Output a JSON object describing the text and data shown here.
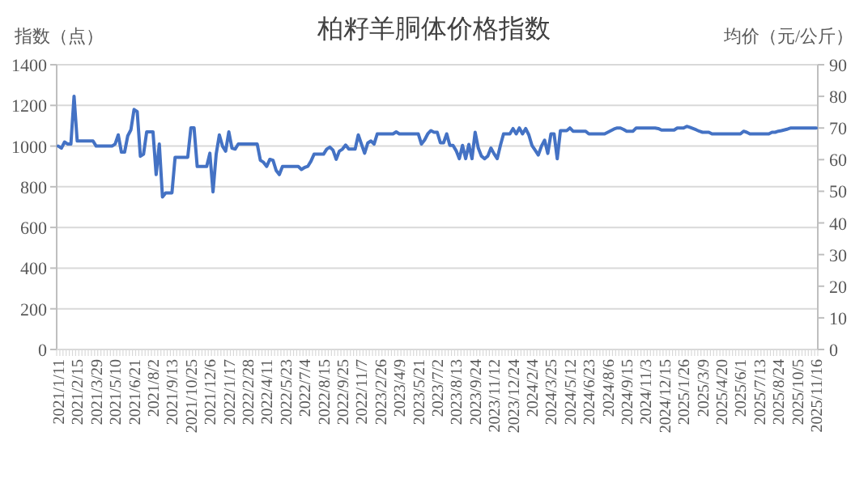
{
  "chart_data": {
    "type": "line",
    "title": "柏籽羊胴体价格指数",
    "ylabel": "指数（点）",
    "y2label": "均价（元/公斤）",
    "categories": [
      "2021/1/11",
      null,
      null,
      null,
      null,
      null,
      "2021/2/15",
      null,
      null,
      null,
      null,
      null,
      "2021/3/29",
      null,
      null,
      null,
      null,
      null,
      "2021/5/10",
      null,
      null,
      null,
      null,
      null,
      "2021/6/21",
      null,
      null,
      null,
      null,
      null,
      "2021/8/2",
      null,
      null,
      null,
      null,
      null,
      "2021/9/13",
      null,
      null,
      null,
      null,
      null,
      "2021/10/25",
      null,
      null,
      null,
      null,
      null,
      "2021/12/6",
      null,
      null,
      null,
      null,
      null,
      "2022/1/17",
      null,
      null,
      null,
      null,
      null,
      "2022/2/28",
      null,
      null,
      null,
      null,
      null,
      "2022/4/11",
      null,
      null,
      null,
      null,
      null,
      "2022/5/23",
      null,
      null,
      null,
      null,
      null,
      "2022/7/4",
      null,
      null,
      null,
      null,
      null,
      "2022/8/15",
      null,
      null,
      null,
      null,
      null,
      "2022/9/25",
      null,
      null,
      null,
      null,
      null,
      "2022/11/7",
      null,
      null,
      null,
      null,
      null,
      "2023/2/26",
      null,
      null,
      null,
      null,
      null,
      "2023/4/9",
      null,
      null,
      null,
      null,
      null,
      "2023/5/21",
      null,
      null,
      null,
      null,
      null,
      "2023/7/2",
      null,
      null,
      null,
      null,
      null,
      "2023/8/13",
      null,
      null,
      null,
      null,
      null,
      "2023/9/24",
      null,
      null,
      null,
      null,
      null,
      "2023/11/12",
      null,
      null,
      null,
      null,
      null,
      "2023/12/24",
      null,
      null,
      null,
      null,
      null,
      "2024/2/4",
      null,
      null,
      null,
      null,
      null,
      "2024/3/25",
      null,
      null,
      null,
      null,
      null,
      "2024/5/12",
      null,
      null,
      null,
      null,
      null,
      "2024/6/23",
      null,
      null,
      null,
      null,
      null,
      "2024/8/6",
      null,
      null,
      null,
      null,
      null,
      "2024/9/15",
      null,
      null,
      null,
      null,
      null,
      "2024/11/3",
      null,
      null,
      null,
      null,
      null,
      "2024/12/15",
      null,
      null,
      null,
      null,
      null,
      "2025/1/26",
      null,
      null,
      null,
      null,
      null,
      "2025/3/9",
      null,
      null,
      null,
      null,
      null,
      "2025/4/20",
      null,
      null,
      null,
      null,
      null,
      "2025/6/1",
      null,
      null,
      null,
      null,
      null,
      "2025/7/13",
      null,
      null,
      null,
      null,
      null,
      "2025/8/24",
      null,
      null,
      null,
      null,
      null,
      "2025/10/5",
      null,
      null,
      null,
      null,
      null,
      "2025/11/16"
    ],
    "series": [
      {
        "color": "#4472c4",
        "values": [
          1000,
          990,
          1020,
          1010,
          1010,
          1245,
          1025,
          1025,
          1025,
          1025,
          1025,
          1025,
          1000,
          1000,
          1000,
          1000,
          1000,
          1000,
          1010,
          1055,
          970,
          970,
          1050,
          1080,
          1180,
          1170,
          950,
          960,
          1070,
          1070,
          1070,
          860,
          1010,
          750,
          770,
          770,
          770,
          945,
          945,
          945,
          945,
          945,
          1090,
          1090,
          900,
          900,
          900,
          900,
          965,
          775,
          960,
          1055,
          1000,
          975,
          1070,
          990,
          985,
          1010,
          1010,
          1010,
          1010,
          1010,
          1010,
          1010,
          930,
          920,
          900,
          935,
          930,
          880,
          860,
          900,
          900,
          900,
          900,
          900,
          900,
          885,
          895,
          900,
          925,
          960,
          960,
          960,
          960,
          985,
          995,
          980,
          935,
          975,
          985,
          1005,
          985,
          985,
          985,
          1055,
          1010,
          965,
          1015,
          1025,
          1010,
          1060,
          1060,
          1060,
          1060,
          1060,
          1060,
          1070,
          1060,
          1060,
          1060,
          1060,
          1060,
          1060,
          1060,
          1010,
          1030,
          1060,
          1076,
          1068,
          1068,
          1016,
          1016,
          1060,
          1003,
          1003,
          977,
          938,
          1003,
          938,
          1008,
          938,
          1068,
          990,
          951,
          938,
          951,
          990,
          962,
          938,
          1003,
          1060,
          1060,
          1060,
          1086,
          1060,
          1089,
          1060,
          1086,
          1055,
          1003,
          980,
          956,
          1000,
          1029,
          964,
          1060,
          1060,
          938,
          1076,
          1076,
          1076,
          1089,
          1073,
          1073,
          1073,
          1073,
          1073,
          1060,
          1060,
          1060,
          1060,
          1060,
          1060,
          1068,
          1076,
          1084,
          1089,
          1089,
          1082,
          1073,
          1073,
          1073,
          1089,
          1089,
          1089,
          1089,
          1089,
          1089,
          1089,
          1086,
          1079,
          1079,
          1079,
          1079,
          1079,
          1089,
          1089,
          1089,
          1097,
          1092,
          1086,
          1080,
          1073,
          1068,
          1068,
          1068,
          1060,
          1060,
          1060,
          1060,
          1060,
          1060,
          1060,
          1060,
          1060,
          1060,
          1073,
          1068,
          1060,
          1060,
          1060,
          1060,
          1060,
          1060,
          1060,
          1068,
          1068,
          1073,
          1076,
          1080,
          1084,
          1089,
          1089,
          1089,
          1089,
          1089,
          1089,
          1089,
          1089,
          1089
        ]
      }
    ],
    "ylim": [
      0,
      1400
    ],
    "yticks": [
      0,
      200,
      400,
      600,
      800,
      1000,
      1200,
      1400
    ],
    "y2lim": [
      0,
      90
    ],
    "y2ticks": [
      0,
      10,
      20,
      30,
      40,
      50,
      60,
      70,
      80,
      90
    ],
    "grid": "y",
    "line_style": "solid",
    "marker": "none"
  }
}
